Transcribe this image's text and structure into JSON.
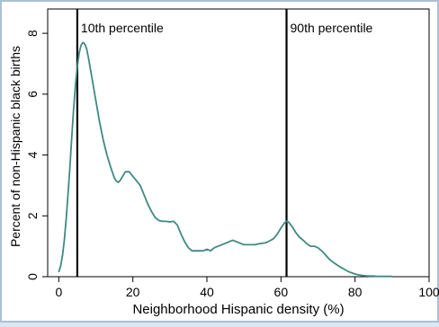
{
  "chart_data": {
    "type": "line",
    "title": "",
    "xlabel": "Neighborhood Hispanic density (%)",
    "ylabel": "Percent of non-Hispanic black births",
    "xlim": [
      -3,
      100
    ],
    "ylim": [
      0,
      8.8
    ],
    "xticks": [
      0,
      20,
      40,
      60,
      80,
      100
    ],
    "yticks": [
      0,
      2,
      4,
      6,
      8
    ],
    "grid": false,
    "legend": "none",
    "line_color": "#3f8a80",
    "series": [
      {
        "name": "",
        "x": [
          0,
          0.5,
          1,
          1.5,
          2,
          2.5,
          3,
          3.5,
          4,
          4.5,
          5,
          5.5,
          6,
          6.5,
          7,
          7.5,
          8,
          9,
          10,
          11,
          12,
          13,
          14,
          15,
          15.5,
          16,
          16.5,
          17,
          18,
          19,
          20,
          21,
          22,
          23,
          24,
          25,
          26,
          27,
          28,
          29,
          30,
          31,
          32,
          33,
          34,
          35,
          36,
          37,
          38,
          39,
          40,
          41,
          42,
          43,
          44,
          45,
          46,
          47,
          48,
          49,
          50,
          51,
          52,
          53,
          54,
          55,
          56,
          57,
          58,
          59,
          60,
          61,
          61.5,
          62,
          63,
          64,
          65,
          66,
          67,
          68,
          69,
          70,
          71,
          72,
          73,
          74,
          75,
          76,
          77,
          78,
          79,
          80,
          81,
          82,
          83,
          84,
          85,
          86,
          87,
          88,
          89,
          90
        ],
        "y": [
          0.15,
          0.35,
          0.7,
          1.2,
          1.9,
          2.7,
          3.6,
          4.6,
          5.5,
          6.3,
          6.9,
          7.35,
          7.6,
          7.7,
          7.65,
          7.5,
          7.2,
          6.5,
          5.8,
          5.1,
          4.5,
          4.0,
          3.6,
          3.25,
          3.15,
          3.1,
          3.15,
          3.25,
          3.45,
          3.45,
          3.3,
          3.15,
          3.0,
          2.7,
          2.4,
          2.15,
          1.95,
          1.85,
          1.82,
          1.82,
          1.8,
          1.82,
          1.7,
          1.4,
          1.15,
          0.95,
          0.85,
          0.85,
          0.85,
          0.85,
          0.9,
          0.85,
          0.95,
          1.0,
          1.05,
          1.1,
          1.15,
          1.2,
          1.15,
          1.1,
          1.05,
          1.05,
          1.05,
          1.05,
          1.08,
          1.1,
          1.12,
          1.18,
          1.25,
          1.4,
          1.6,
          1.78,
          1.82,
          1.8,
          1.65,
          1.45,
          1.3,
          1.2,
          1.08,
          1.0,
          1.0,
          0.95,
          0.85,
          0.72,
          0.58,
          0.48,
          0.4,
          0.32,
          0.25,
          0.18,
          0.13,
          0.09,
          0.06,
          0.04,
          0.03,
          0.02,
          0.02,
          0.01,
          0.01,
          0.01,
          0.01,
          0.01
        ]
      }
    ],
    "reference_lines": [
      {
        "x": 5,
        "label": "10th percentile"
      },
      {
        "x": 61.5,
        "label": "90th percentile"
      }
    ]
  }
}
